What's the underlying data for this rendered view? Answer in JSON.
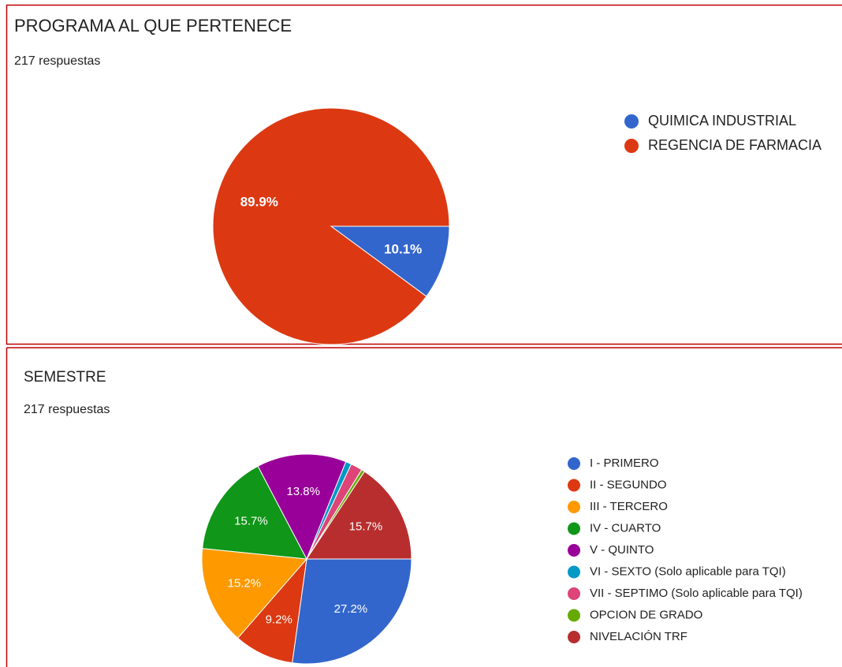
{
  "chart_data": [
    {
      "type": "pie",
      "title": "PROGRAMA AL QUE PERTENECE",
      "subtitle": "217 respuestas",
      "categories": [
        "QUIMICA INDUSTRIAL",
        "REGENCIA DE FARMACIA"
      ],
      "values": [
        10.1,
        89.9
      ],
      "value_labels": [
        "10.1%",
        "89.9%"
      ],
      "colors": [
        "#3366cc",
        "#dc3912"
      ]
    },
    {
      "type": "pie",
      "title": "SEMESTRE",
      "subtitle": "217 respuestas",
      "categories": [
        "I - PRIMERO",
        "II - SEGUNDO",
        "III - TERCERO",
        "IV - CUARTO",
        "V - QUINTO",
        "VI - SEXTO (Solo aplicable para TQI)",
        "VII - SEPTIMO (Solo aplicable para TQI)",
        "OPCION DE GRADO",
        "NIVELACIÓN TRF"
      ],
      "values": [
        27.2,
        9.2,
        15.2,
        15.7,
        13.8,
        0.9,
        1.8,
        0.5,
        15.7
      ],
      "value_labels": [
        "27.2%",
        "9.2%",
        "15.2%",
        "15.7%",
        "13.8%",
        null,
        null,
        null,
        "15.7%"
      ],
      "colors": [
        "#3366cc",
        "#dc3912",
        "#ff9900",
        "#109618",
        "#990099",
        "#0099c6",
        "#dd4477",
        "#66aa00",
        "#b82e2e"
      ]
    }
  ]
}
